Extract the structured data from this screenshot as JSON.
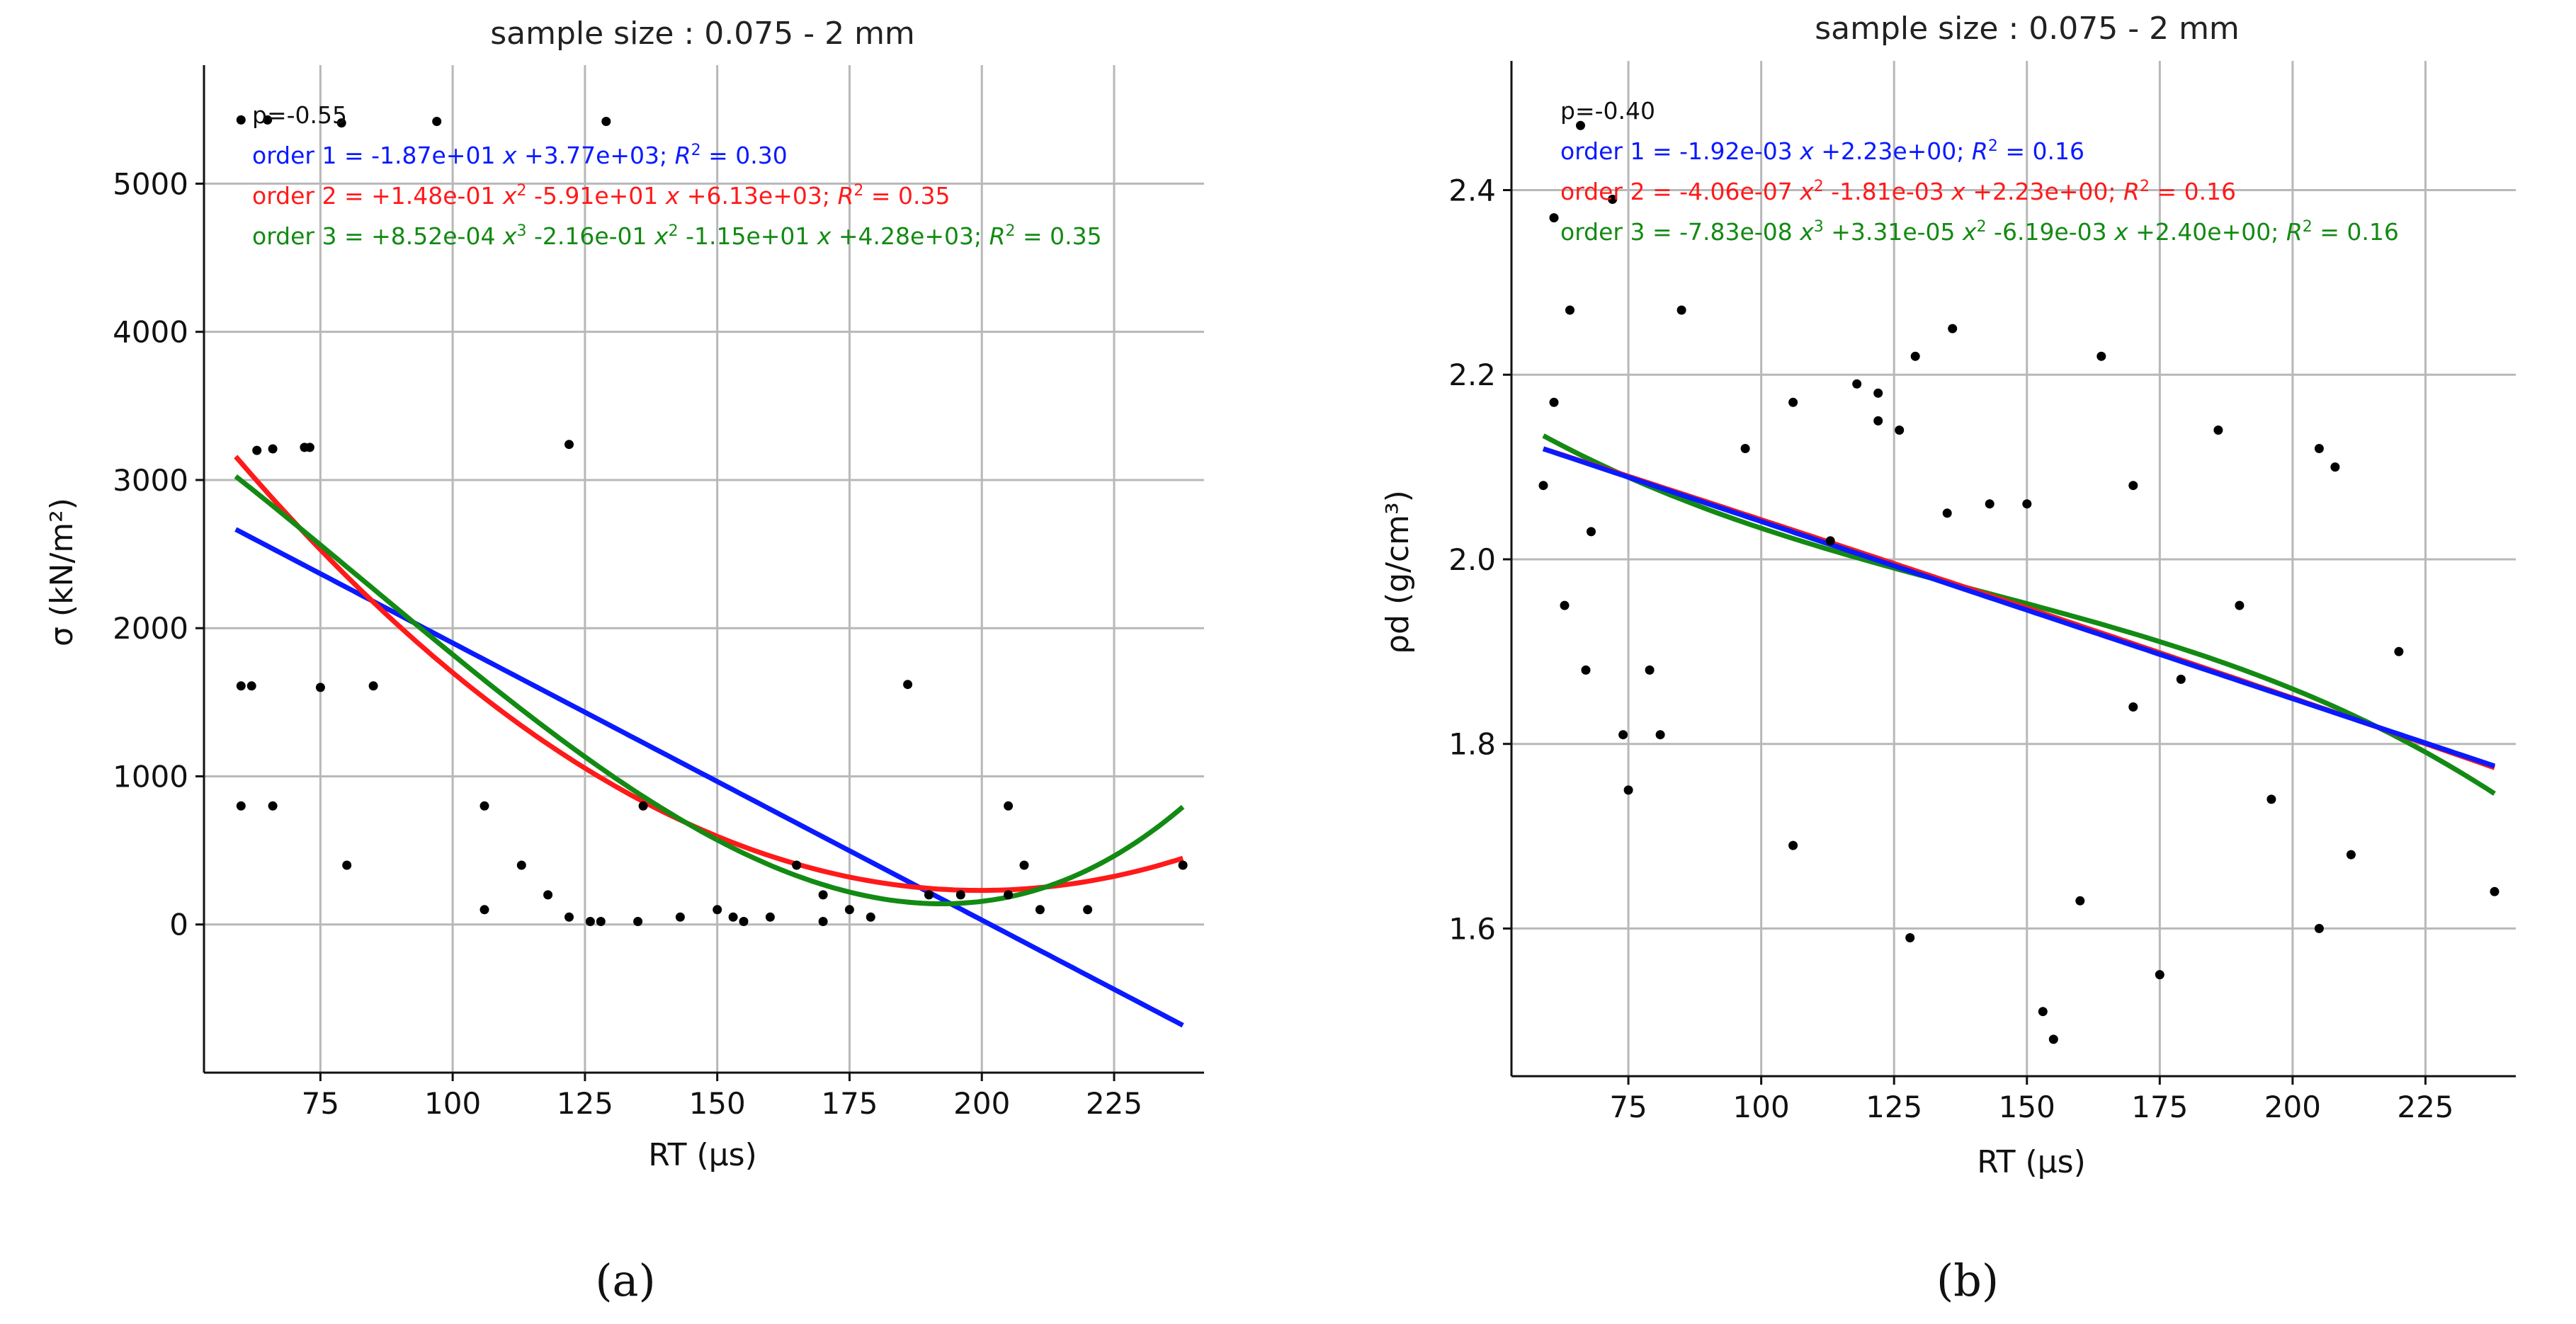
{
  "chart_data": [
    {
      "type": "scatter",
      "panel_label": "(a)",
      "title": "sample size : 0.075 - 2 mm",
      "xlabel": "RT (µs)",
      "ylabel": "σ (kN/m²)",
      "xlim": [
        53,
        242
      ],
      "ylim": [
        -1000,
        5800
      ],
      "xticks": [
        "75",
        "100",
        "125",
        "150",
        "175",
        "200",
        "225"
      ],
      "yticks": [
        "0",
        "1000",
        "2000",
        "3000",
        "4000",
        "5000"
      ],
      "corr_label": "p=-0.55",
      "fit_labels": [
        "order 1 = -1.87e+01 x +3.77e+03;  R² = 0.30",
        "order 2 = +1.48e-01 x² -5.91e+01 x +6.13e+03;  R² = 0.35",
        "order 3 = +8.52e-04 x³ -2.16e-01 x² -1.15e+01 x +4.28e+03;  R² = 0.35"
      ],
      "fit_colors": [
        "#0a1aff",
        "#ff1a1a",
        "#138a13"
      ],
      "fits": [
        {
          "name": "order 1",
          "color": "#0a1aff",
          "degree": 1,
          "coeffs": [
            -18.7,
            3770
          ],
          "range": [
            59,
            238
          ]
        },
        {
          "name": "order 2",
          "color": "#ff1a1a",
          "degree": 2,
          "coeffs": [
            0.148,
            -59.1,
            6130
          ],
          "range": [
            59,
            238
          ]
        },
        {
          "name": "order 3",
          "color": "#138a13",
          "degree": 3,
          "coeffs": [
            0.000852,
            -0.216,
            -11.5,
            4280
          ],
          "range": [
            59,
            238
          ]
        }
      ],
      "points": [
        [
          60,
          5430
        ],
        [
          60,
          1610
        ],
        [
          60,
          800
        ],
        [
          62,
          1610
        ],
        [
          63,
          3200
        ],
        [
          65,
          5430
        ],
        [
          66,
          3210
        ],
        [
          66,
          800
        ],
        [
          72,
          3220
        ],
        [
          73,
          3220
        ],
        [
          75,
          1600
        ],
        [
          79,
          5410
        ],
        [
          80,
          400
        ],
        [
          85,
          1610
        ],
        [
          97,
          5420
        ],
        [
          106,
          800
        ],
        [
          106,
          100
        ],
        [
          113,
          400
        ],
        [
          118,
          200
        ],
        [
          122,
          3240
        ],
        [
          122,
          50
        ],
        [
          126,
          20
        ],
        [
          128,
          20
        ],
        [
          129,
          5420
        ],
        [
          135,
          20
        ],
        [
          136,
          800
        ],
        [
          143,
          50
        ],
        [
          150,
          100
        ],
        [
          153,
          50
        ],
        [
          155,
          20
        ],
        [
          160,
          50
        ],
        [
          165,
          400
        ],
        [
          170,
          200
        ],
        [
          170,
          20
        ],
        [
          175,
          100
        ],
        [
          179,
          50
        ],
        [
          186,
          1620
        ],
        [
          190,
          200
        ],
        [
          196,
          200
        ],
        [
          205,
          200
        ],
        [
          205,
          800
        ],
        [
          208,
          400
        ],
        [
          211,
          100
        ],
        [
          220,
          100
        ],
        [
          238,
          400
        ]
      ]
    },
    {
      "type": "scatter",
      "panel_label": "(b)",
      "title": "sample size : 0.075 - 2 mm",
      "xlabel": "RT (µs)",
      "ylabel": "ρd (g/cm³)",
      "xlim": [
        53,
        242
      ],
      "ylim": [
        1.44,
        2.54
      ],
      "xticks": [
        "75",
        "100",
        "125",
        "150",
        "175",
        "200",
        "225"
      ],
      "yticks": [
        "1.6",
        "1.8",
        "2.0",
        "2.2",
        "2.4"
      ],
      "corr_label": "p=-0.40",
      "fit_labels": [
        "order 1 = -1.92e-03 x +2.23e+00;  R² = 0.16",
        "order 2 = -4.06e-07 x² -1.81e-03 x +2.23e+00;  R² = 0.16",
        "order 3 = -7.83e-08 x³ +3.31e-05 x² -6.19e-03 x +2.40e+00;  R² = 0.16"
      ],
      "fit_colors": [
        "#0a1aff",
        "#ff1a1a",
        "#138a13"
      ],
      "fits": [
        {
          "name": "order 3",
          "color": "#138a13",
          "degree": 3,
          "coeffs": [
            -7.83e-08,
            3.31e-05,
            -0.00619,
            2.4
          ],
          "range": [
            59,
            238
          ]
        },
        {
          "name": "order 2",
          "color": "#ff1a1a",
          "degree": 2,
          "coeffs": [
            -4.06e-07,
            -0.00181,
            2.228
          ],
          "range": [
            59,
            238
          ]
        },
        {
          "name": "order 1",
          "color": "#0a1aff",
          "degree": 1,
          "coeffs": [
            -0.00192,
            2.233
          ],
          "range": [
            59,
            238
          ]
        }
      ],
      "points": [
        [
          59,
          2.08
        ],
        [
          61,
          2.37
        ],
        [
          61,
          2.17
        ],
        [
          63,
          1.95
        ],
        [
          64,
          2.27
        ],
        [
          66,
          2.47
        ],
        [
          67,
          1.88
        ],
        [
          68,
          2.03
        ],
        [
          72,
          2.39
        ],
        [
          74,
          1.81
        ],
        [
          75,
          1.75
        ],
        [
          79,
          1.88
        ],
        [
          81,
          1.81
        ],
        [
          85,
          2.27
        ],
        [
          97,
          2.12
        ],
        [
          106,
          2.17
        ],
        [
          106,
          1.69
        ],
        [
          113,
          2.02
        ],
        [
          118,
          2.19
        ],
        [
          122,
          2.18
        ],
        [
          122,
          2.15
        ],
        [
          126,
          2.14
        ],
        [
          128,
          1.59
        ],
        [
          129,
          2.22
        ],
        [
          135,
          2.05
        ],
        [
          136,
          2.25
        ],
        [
          143,
          2.06
        ],
        [
          150,
          2.06
        ],
        [
          153,
          1.51
        ],
        [
          155,
          1.48
        ],
        [
          160,
          1.63
        ],
        [
          164,
          2.22
        ],
        [
          170,
          2.08
        ],
        [
          170,
          1.84
        ],
        [
          175,
          1.55
        ],
        [
          179,
          1.87
        ],
        [
          186,
          2.14
        ],
        [
          190,
          1.95
        ],
        [
          196,
          1.74
        ],
        [
          205,
          1.6
        ],
        [
          205,
          2.12
        ],
        [
          208,
          2.1
        ],
        [
          211,
          1.68
        ],
        [
          220,
          1.9
        ],
        [
          238,
          1.64
        ]
      ]
    }
  ]
}
